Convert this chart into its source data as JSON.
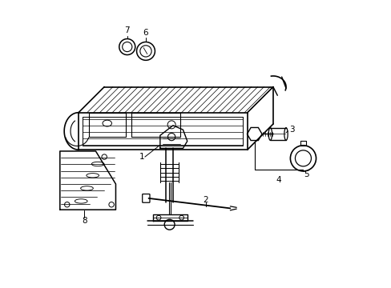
{
  "background_color": "#ffffff",
  "line_color": "#000000",
  "figsize": [
    4.89,
    3.6
  ],
  "dpi": 100,
  "xlim": [
    0,
    10
  ],
  "ylim": [
    0,
    10
  ]
}
